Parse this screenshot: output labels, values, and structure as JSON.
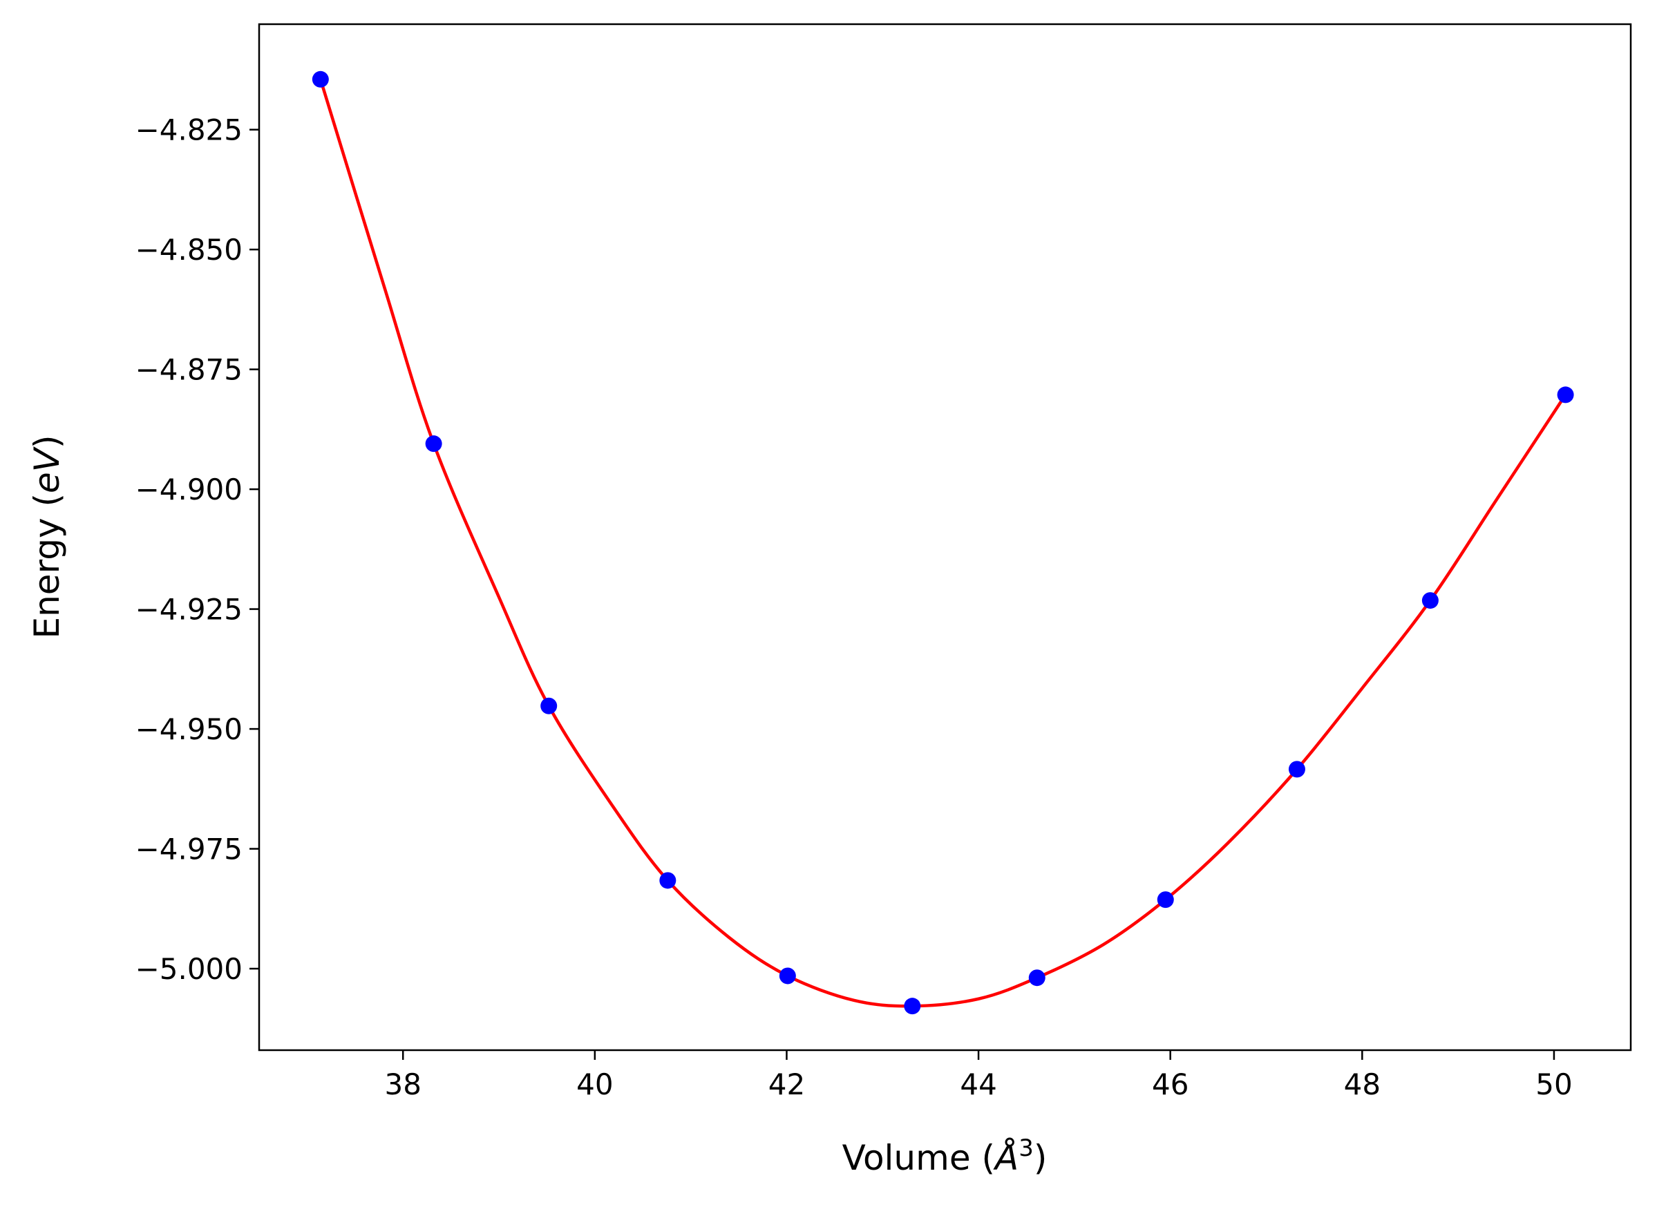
{
  "chart_data": {
    "type": "scatter",
    "title": "",
    "xlabel": "Volume (",
    "xlabel_unit": "Å",
    "xlabel_exp": "3",
    "xlabel_close": ")",
    "ylabel": "Energy (",
    "ylabel_unit": "eV",
    "ylabel_close": ")",
    "xlim": [
      36.5,
      50.8
    ],
    "ylim": [
      -5.017,
      -4.803
    ],
    "xticks": [
      38,
      40,
      42,
      44,
      46,
      48,
      50
    ],
    "xtick_labels": [
      "38",
      "40",
      "42",
      "44",
      "46",
      "48",
      "50"
    ],
    "yticks": [
      -4.825,
      -4.85,
      -4.875,
      -4.9,
      -4.925,
      -4.95,
      -4.975,
      -5.0
    ],
    "ytick_labels": [
      "−4.825",
      "−4.850",
      "−4.875",
      "−4.900",
      "−4.925",
      "−4.950",
      "−4.975",
      "−5.000"
    ],
    "grid": false,
    "legend": false,
    "series": [
      {
        "kind": "points",
        "color": "#0000ff",
        "x": [
          37.14,
          38.32,
          39.52,
          40.76,
          42.01,
          43.31,
          44.61,
          45.95,
          47.32,
          48.71,
          50.12
        ],
        "y": [
          -4.8145,
          -4.8905,
          -4.9452,
          -4.9816,
          -5.0015,
          -5.0078,
          -5.0019,
          -4.9856,
          -4.9584,
          -4.9232,
          -4.8803
        ]
      },
      {
        "kind": "fit-curve",
        "color": "#ff0000",
        "x": [
          37.14,
          37.8,
          38.32,
          39.0,
          39.52,
          40.2,
          40.76,
          41.4,
          42.01,
          42.7,
          43.31,
          44.0,
          44.61,
          45.3,
          45.95,
          46.6,
          47.32,
          48.0,
          48.71,
          49.4,
          50.12
        ],
        "y": [
          -4.8145,
          -4.8575,
          -4.8905,
          -4.9225,
          -4.9452,
          -4.9665,
          -4.9816,
          -4.9935,
          -5.0015,
          -5.0066,
          -5.0078,
          -5.0063,
          -5.0019,
          -4.995,
          -4.9856,
          -4.9738,
          -4.9584,
          -4.9415,
          -4.9232,
          -4.9022,
          -4.8803
        ]
      }
    ]
  }
}
